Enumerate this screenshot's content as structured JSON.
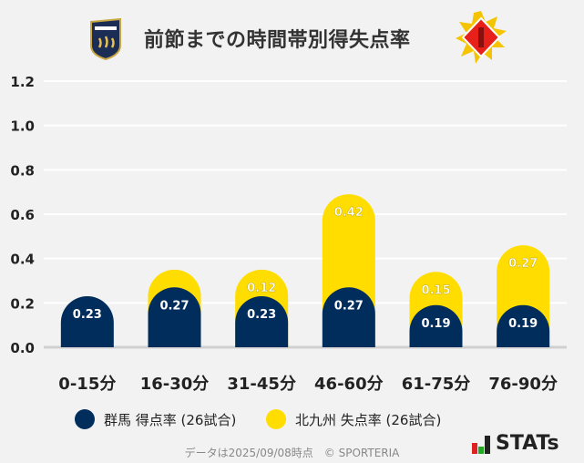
{
  "title": "前節までの時間帯別得失点率",
  "legend": [
    {
      "label": "群馬 得点率 (26試合)",
      "color": "#002d5c"
    },
    {
      "label": "北九州 失点率 (26試合)",
      "color": "#ffdd00"
    }
  ],
  "footer": "データは2025/09/08時点　© SPORTERIA",
  "brand": "STATs",
  "chart_data": {
    "type": "bar",
    "stacked": true,
    "categories": [
      "0-15分",
      "16-30分",
      "31-45分",
      "46-60分",
      "61-75分",
      "76-90分"
    ],
    "series": [
      {
        "name": "群馬 得点率 (26試合)",
        "values": [
          0.23,
          0.27,
          0.23,
          0.27,
          0.19,
          0.19
        ],
        "labels": [
          "0.23",
          "0.27",
          "0.23",
          "0.27",
          "0.19",
          "0.19"
        ],
        "color": "#002d5c"
      },
      {
        "name": "北九州 失点率 (26試合)",
        "values": [
          0,
          0.08,
          0.12,
          0.42,
          0.15,
          0.27
        ],
        "labels": [
          "",
          "",
          "0.12",
          "0.42",
          "0.15",
          "0.27"
        ],
        "color": "#ffdd00"
      }
    ],
    "yticks": [
      "0.0",
      "0.2",
      "0.4",
      "0.6",
      "0.8",
      "1.0",
      "1.2"
    ],
    "ylim": [
      0,
      1.2
    ],
    "grid": true,
    "legend_position": "bottom"
  }
}
